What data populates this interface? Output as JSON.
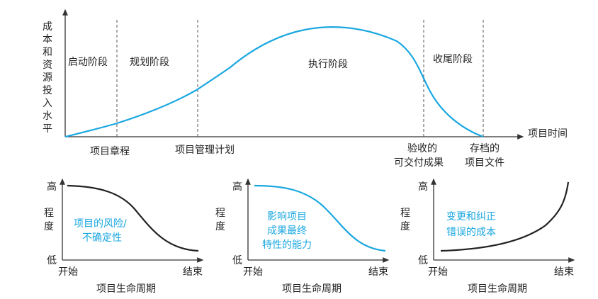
{
  "main_chart": {
    "y_label": [
      "成",
      "本",
      "和",
      "资",
      "源",
      "投",
      "入",
      "水",
      "平"
    ],
    "x_label": "项目时间",
    "phases": [
      "启动阶段",
      "规划阶段",
      "执行阶段",
      "收尾阶段"
    ],
    "milestones": [
      {
        "lines": [
          "项目章程"
        ]
      },
      {
        "lines": [
          "项目管理计划"
        ]
      },
      {
        "lines": [
          "验收的",
          "可交付成果"
        ]
      },
      {
        "lines": [
          "存档的",
          "项目文件"
        ]
      }
    ]
  },
  "panels": [
    {
      "high": "高",
      "low": "低",
      "y_label": [
        "程",
        "度"
      ],
      "start": "开始",
      "end": "结束",
      "x_label": "项目生命周期",
      "caption": [
        "项目的风险/",
        "不确定性"
      ]
    },
    {
      "high": "高",
      "low": "低",
      "y_label": [
        "程",
        "度"
      ],
      "start": "开始",
      "end": "结束",
      "x_label": "项目生命周期",
      "caption": [
        "影响项目",
        "成果最终",
        "特性的能力"
      ]
    },
    {
      "high": "高",
      "low": "低",
      "y_label": [
        "程",
        "度"
      ],
      "start": "开始",
      "end": "结束",
      "x_label": "项目生命周期",
      "caption": [
        "变更和纠正",
        "错误的成本"
      ]
    }
  ],
  "colors": {
    "accent": "#1aa7e0",
    "dark": "#222222"
  }
}
